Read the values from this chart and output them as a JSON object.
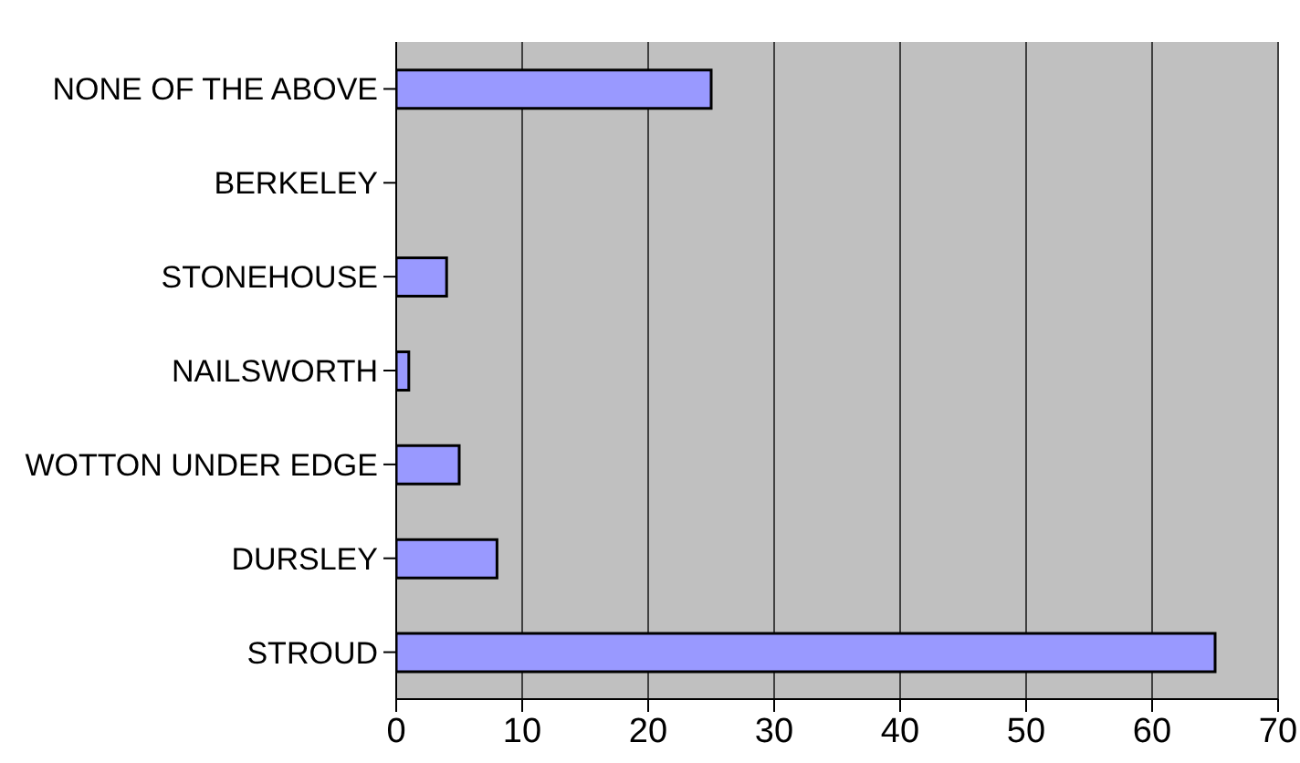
{
  "chart_data": {
    "type": "bar",
    "orientation": "horizontal",
    "categories": [
      "NONE OF THE ABOVE",
      "BERKELEY",
      "STONEHOUSE",
      "NAILSWORTH",
      "WOTTON UNDER EDGE",
      "DURSLEY",
      "STROUD"
    ],
    "values": [
      25,
      0,
      4,
      1,
      5,
      8,
      65
    ],
    "color": "#9999ff",
    "xlim": [
      0,
      70
    ],
    "xticks": [
      0,
      10,
      20,
      30,
      40,
      50,
      60,
      70
    ],
    "grid": "x"
  }
}
